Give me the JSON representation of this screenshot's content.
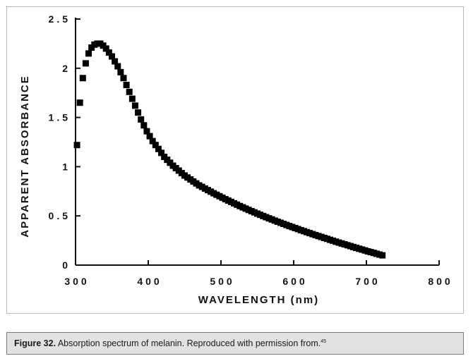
{
  "chart_data": {
    "type": "scatter",
    "title": "",
    "xlabel": "WAVELENGTH (nm)",
    "ylabel": "APPARENT ABSORBANCE",
    "xlim": [
      300,
      800
    ],
    "ylim": [
      0,
      2.5
    ],
    "x_ticks": [
      300,
      400,
      500,
      600,
      700,
      800
    ],
    "x_tick_labels": [
      "300",
      "400",
      "500",
      "600",
      "700",
      "800"
    ],
    "y_ticks": [
      0,
      0.5,
      1,
      1.5,
      2,
      2.5
    ],
    "y_tick_labels": [
      "0",
      "0.5",
      "1",
      "1.5",
      "2",
      "2.5"
    ],
    "grid": false,
    "marker": "square",
    "series": [
      {
        "name": "melanin",
        "color": "#000000",
        "x": [
          302,
          306,
          310,
          314,
          318,
          322,
          326,
          330,
          334,
          338,
          342,
          346,
          350,
          354,
          358,
          362,
          366,
          370,
          374,
          378,
          382,
          386,
          390,
          394,
          398,
          402,
          406,
          410,
          414,
          418,
          422,
          426,
          430,
          434,
          438,
          442,
          446,
          450,
          454,
          458,
          462,
          466,
          470,
          474,
          478,
          482,
          486,
          490,
          494,
          498,
          502,
          506,
          510,
          514,
          518,
          522,
          526,
          530,
          534,
          538,
          542,
          546,
          550,
          554,
          558,
          562,
          566,
          570,
          574,
          578,
          582,
          586,
          590,
          594,
          598,
          602,
          606,
          610,
          614,
          618,
          622,
          626,
          630,
          634,
          638,
          642,
          646,
          650,
          654,
          658,
          662,
          666,
          670,
          674,
          678,
          682,
          686,
          690,
          694,
          698,
          702,
          706,
          710,
          714,
          718,
          722
        ],
        "y": [
          1.22,
          1.65,
          1.9,
          2.05,
          2.15,
          2.21,
          2.24,
          2.25,
          2.25,
          2.23,
          2.2,
          2.16,
          2.12,
          2.07,
          2.02,
          1.96,
          1.9,
          1.83,
          1.76,
          1.69,
          1.62,
          1.55,
          1.48,
          1.42,
          1.36,
          1.31,
          1.26,
          1.22,
          1.18,
          1.14,
          1.1,
          1.07,
          1.04,
          1.01,
          0.985,
          0.96,
          0.935,
          0.91,
          0.89,
          0.87,
          0.85,
          0.83,
          0.81,
          0.795,
          0.778,
          0.762,
          0.746,
          0.73,
          0.715,
          0.7,
          0.685,
          0.67,
          0.656,
          0.642,
          0.628,
          0.614,
          0.6,
          0.587,
          0.574,
          0.561,
          0.548,
          0.536,
          0.523,
          0.511,
          0.499,
          0.487,
          0.475,
          0.464,
          0.452,
          0.441,
          0.43,
          0.419,
          0.408,
          0.397,
          0.387,
          0.376,
          0.366,
          0.355,
          0.345,
          0.335,
          0.325,
          0.315,
          0.305,
          0.295,
          0.286,
          0.276,
          0.267,
          0.257,
          0.248,
          0.238,
          0.229,
          0.22,
          0.211,
          0.202,
          0.193,
          0.184,
          0.175,
          0.166,
          0.158,
          0.149,
          0.14,
          0.132,
          0.124,
          0.115,
          0.107,
          0.099
        ]
      }
    ]
  },
  "caption": {
    "label": "Figure 32.",
    "text": "Absorption spectrum of melanin. Reproduced with permission from.",
    "ref": "45"
  }
}
